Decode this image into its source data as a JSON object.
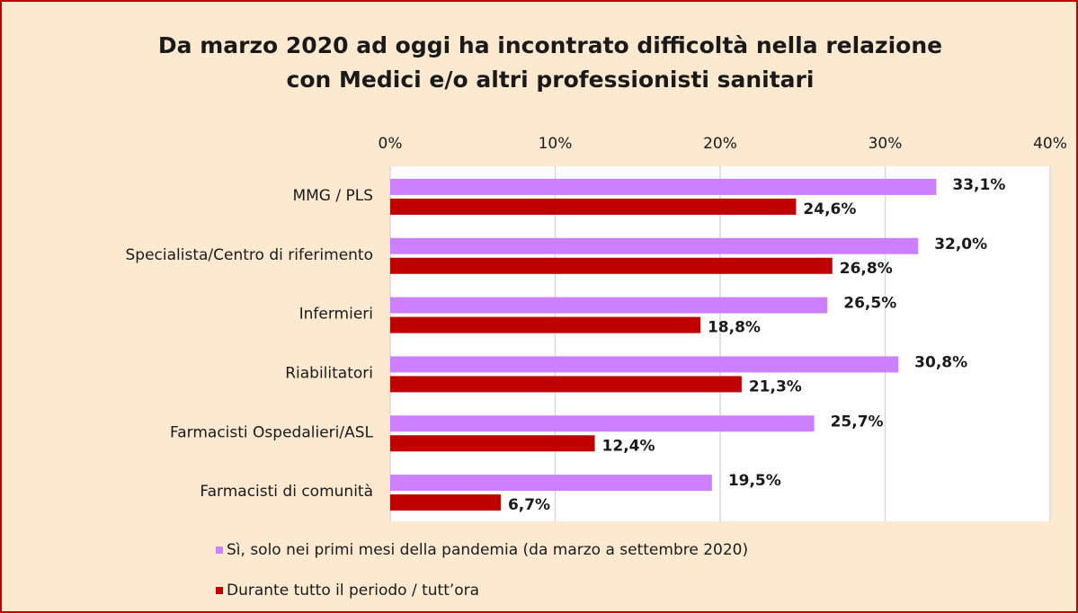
{
  "chart_data": {
    "type": "hbar",
    "title": [
      "Da marzo 2020 ad oggi ha incontrato difficoltà nella relazione",
      "con Medici e/o altri professionisti sanitari"
    ],
    "categories": [
      "MMG / PLS",
      "Specialista/Centro di riferimento",
      "Infermieri",
      "Riabilitatori",
      "Farmacisti Ospedalieri/ASL",
      "Farmacisti di comunità"
    ],
    "series": [
      {
        "name": "Sì, solo nei primi mesi della pandemia (da marzo a settembre 2020)",
        "color": "#cc80ff",
        "values": [
          33.1,
          32.0,
          26.5,
          30.8,
          25.7,
          19.5
        ],
        "value_labels": [
          "33,1%",
          "32,0%",
          "26,5%",
          "30,8%",
          "25,7%",
          "19,5%"
        ]
      },
      {
        "name": "Durante tutto il periodo / tutt’ora",
        "color": "#c00000",
        "values": [
          24.6,
          26.8,
          18.8,
          21.3,
          12.4,
          6.7
        ],
        "value_labels": [
          "24,6%",
          "26,8%",
          "18,8%",
          "21,3%",
          "12,4%",
          "6,7%"
        ]
      }
    ],
    "xlim": [
      0,
      40
    ],
    "xticks": [
      {
        "value": 0,
        "label": "0%"
      },
      {
        "value": 10,
        "label": "10%"
      },
      {
        "value": 20,
        "label": "20%"
      },
      {
        "value": 30,
        "label": "30%"
      },
      {
        "value": 40,
        "label": "40%"
      }
    ],
    "grid": true
  }
}
